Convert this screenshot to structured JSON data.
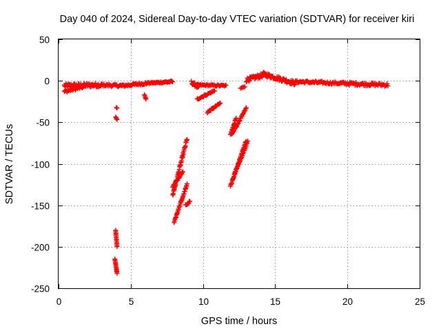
{
  "chart_data": {
    "type": "scatter",
    "title": "Day 040 of 2024, Sidereal Day-to-day VTEC variation (SDTVAR) for receiver kiri",
    "xlabel": "GPS time / hours",
    "ylabel": "SDTVAR / TECUs",
    "xlim": [
      0,
      25
    ],
    "ylim": [
      -250,
      50
    ],
    "xticks": [
      "0",
      "5",
      "10",
      "15",
      "20",
      "25"
    ],
    "yticks": [
      "50",
      "0",
      "-50",
      "-100",
      "-150",
      "-200",
      "-250"
    ],
    "grid": true,
    "marker": "plus",
    "color": "#ff0000",
    "series": [
      {
        "segments": [
          {
            "x0": 0.4,
            "x1": 3.0,
            "y0": -6,
            "y1": -5,
            "spread": 5,
            "n": 70
          },
          {
            "x0": 0.4,
            "x1": 1.8,
            "y0": -13,
            "y1": -7,
            "spread": 3,
            "n": 30
          },
          {
            "x0": 3.0,
            "x1": 4.4,
            "y0": -5,
            "y1": -6,
            "spread": 3,
            "n": 30
          },
          {
            "x0": 4.4,
            "x1": 6.0,
            "y0": -6,
            "y1": -3,
            "spread": 3,
            "n": 35
          },
          {
            "x0": 5.95,
            "x1": 6.05,
            "y0": -17,
            "y1": -22,
            "spread": 1,
            "n": 5
          },
          {
            "x0": 6.0,
            "x1": 7.9,
            "y0": -3,
            "y1": -1,
            "spread": 2,
            "n": 40
          },
          {
            "x0": 9.2,
            "x1": 9.7,
            "y0": -2,
            "y1": -8,
            "spread": 4,
            "n": 15
          },
          {
            "x0": 9.6,
            "x1": 11.6,
            "y0": -5,
            "y1": -6,
            "spread": 2,
            "n": 35
          },
          {
            "x0": 9.6,
            "x1": 10.8,
            "y0": -22,
            "y1": -12,
            "spread": 2,
            "n": 25
          },
          {
            "x0": 10.3,
            "x1": 11.2,
            "y0": -38,
            "y1": -27,
            "spread": 2,
            "n": 20
          },
          {
            "x0": 12.6,
            "x1": 12.9,
            "y0": -9,
            "y1": -7,
            "spread": 1,
            "n": 5
          },
          {
            "x0": 13.0,
            "x1": 14.2,
            "y0": 1,
            "y1": 7,
            "spread": 5,
            "n": 35
          },
          {
            "x0": 14.2,
            "x1": 16.4,
            "y0": 8,
            "y1": -3,
            "spread": 5,
            "n": 60
          },
          {
            "x0": 16.4,
            "x1": 19.5,
            "y0": -1,
            "y1": -3,
            "spread": 3,
            "n": 60
          },
          {
            "x0": 19.5,
            "x1": 22.8,
            "y0": -3,
            "y1": -5,
            "spread": 4,
            "n": 65
          },
          {
            "x0": 4.0,
            "x1": 4.05,
            "y0": -32,
            "y1": -33,
            "spread": 0.5,
            "n": 2
          },
          {
            "x0": 3.95,
            "x1": 4.05,
            "y0": -44,
            "y1": -47,
            "spread": 1,
            "n": 4
          },
          {
            "x0": 3.95,
            "x1": 4.05,
            "y0": -180,
            "y1": -200,
            "spread": 0.5,
            "n": 14
          },
          {
            "x0": 3.9,
            "x1": 4.05,
            "y0": -215,
            "y1": -232,
            "spread": 0.5,
            "n": 14
          },
          {
            "x0": 7.9,
            "x1": 8.9,
            "y0": -138,
            "y1": -70,
            "spread": 4,
            "n": 45
          },
          {
            "x0": 7.9,
            "x1": 8.6,
            "y0": -128,
            "y1": -110,
            "spread": 2,
            "n": 22
          },
          {
            "x0": 8.0,
            "x1": 8.9,
            "y0": -170,
            "y1": -125,
            "spread": 2,
            "n": 35
          },
          {
            "x0": 8.8,
            "x1": 9.1,
            "y0": -150,
            "y1": -145,
            "spread": 2,
            "n": 8
          },
          {
            "x0": 11.9,
            "x1": 12.3,
            "y0": -65,
            "y1": -45,
            "spread": 2,
            "n": 16
          },
          {
            "x0": 12.0,
            "x1": 13.0,
            "y0": -65,
            "y1": -32,
            "spread": 2,
            "n": 30
          },
          {
            "x0": 11.9,
            "x1": 13.0,
            "y0": -127,
            "y1": -72,
            "spread": 3,
            "n": 45
          },
          {
            "x0": 12.2,
            "x1": 13.1,
            "y0": -112,
            "y1": -73,
            "spread": 2,
            "n": 25
          }
        ]
      }
    ]
  }
}
